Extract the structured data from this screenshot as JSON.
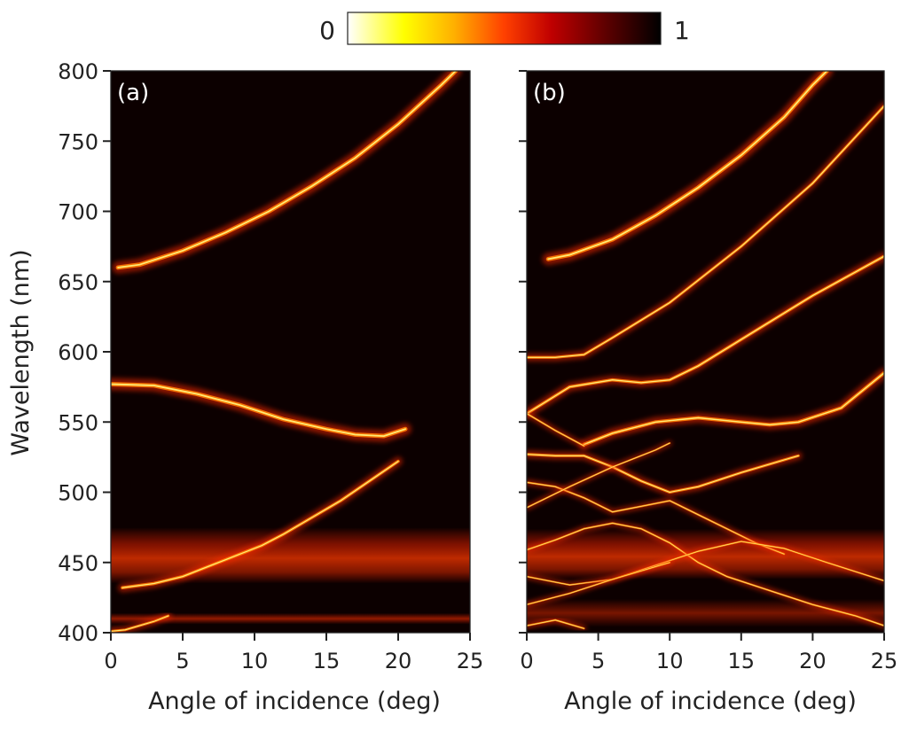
{
  "chart_data": {
    "type": "heatmap",
    "colorbar": {
      "min_label": "0",
      "max_label": "1",
      "colors": [
        "#ffffff",
        "#ffff00",
        "#ffb000",
        "#ff4000",
        "#c00000",
        "#600000",
        "#000000"
      ]
    },
    "ylabel": "Wavelength (nm)",
    "ylim": [
      400,
      800
    ],
    "yticks": [
      "400",
      "450",
      "500",
      "550",
      "600",
      "650",
      "700",
      "750",
      "800"
    ],
    "xlim": [
      0,
      25
    ],
    "xticks": [
      "0",
      "5",
      "10",
      "15",
      "20",
      "25"
    ],
    "panels": [
      {
        "label": "(a)",
        "xlabel": "Angle of incidence (deg)",
        "bands": [
          {
            "wl_center": 455,
            "wl_width": 20,
            "strength": 0.55
          },
          {
            "wl_center": 410,
            "wl_width": 4,
            "strength": 0.5
          }
        ],
        "modes": [
          {
            "points": [
              [
                0.5,
                660
              ],
              [
                2,
                662
              ],
              [
                5,
                672
              ],
              [
                8,
                685
              ],
              [
                11,
                700
              ],
              [
                14,
                718
              ],
              [
                17,
                738
              ],
              [
                20,
                762
              ],
              [
                23,
                790
              ],
              [
                24,
                800
              ]
            ],
            "width": 2.2
          },
          {
            "points": [
              [
                0,
                577
              ],
              [
                3,
                576
              ],
              [
                6,
                570
              ],
              [
                9,
                562
              ],
              [
                12,
                552
              ],
              [
                15,
                545
              ],
              [
                17,
                541
              ],
              [
                19,
                540
              ],
              [
                20.5,
                545
              ]
            ],
            "width": 2.2
          },
          {
            "points": [
              [
                0.8,
                432
              ],
              [
                3,
                435
              ],
              [
                5,
                440
              ],
              [
                7,
                448
              ],
              [
                9,
                456
              ],
              [
                10.5,
                462
              ],
              [
                12,
                470
              ],
              [
                14,
                482
              ],
              [
                16,
                494
              ],
              [
                18,
                508
              ],
              [
                20,
                522
              ]
            ],
            "width": 1.6
          },
          {
            "points": [
              [
                0,
                401
              ],
              [
                1,
                402
              ],
              [
                3,
                408
              ],
              [
                4,
                412
              ]
            ],
            "width": 1.3
          }
        ]
      },
      {
        "label": "(b)",
        "xlabel": "Angle of incidence (deg)",
        "bands": [
          {
            "wl_center": 456,
            "wl_width": 18,
            "strength": 0.55
          },
          {
            "wl_center": 414,
            "wl_width": 10,
            "strength": 0.4
          }
        ],
        "modes": [
          {
            "points": [
              [
                1.5,
                666
              ],
              [
                3,
                669
              ],
              [
                6,
                680
              ],
              [
                9,
                697
              ],
              [
                12,
                717
              ],
              [
                15,
                740
              ],
              [
                18,
                767
              ],
              [
                20,
                790
              ],
              [
                21,
                800
              ]
            ],
            "width": 2.2
          },
          {
            "points": [
              [
                0,
                596
              ],
              [
                2,
                596
              ],
              [
                4,
                598
              ],
              [
                6,
                610
              ],
              [
                10,
                635
              ],
              [
                15,
                675
              ],
              [
                20,
                720
              ],
              [
                25,
                775
              ]
            ],
            "width": 1.4
          },
          {
            "points": [
              [
                0,
                556
              ],
              [
                3,
                575
              ],
              [
                6,
                580
              ],
              [
                8,
                578
              ],
              [
                10,
                580
              ],
              [
                12,
                590
              ],
              [
                16,
                615
              ],
              [
                20,
                640
              ],
              [
                25,
                668
              ]
            ],
            "width": 1.6
          },
          {
            "points": [
              [
                4,
                534
              ],
              [
                6,
                542
              ],
              [
                9,
                550
              ],
              [
                12,
                553
              ],
              [
                15,
                550
              ],
              [
                17,
                548
              ],
              [
                19,
                550
              ],
              [
                22,
                560
              ],
              [
                25,
                585
              ]
            ],
            "width": 1.8
          },
          {
            "points": [
              [
                0,
                556
              ],
              [
                2,
                544
              ],
              [
                4,
                533
              ]
            ],
            "width": 1.0
          },
          {
            "points": [
              [
                0,
                527
              ],
              [
                2,
                526
              ],
              [
                4,
                526
              ],
              [
                6,
                518
              ],
              [
                8,
                508
              ],
              [
                10,
                500
              ],
              [
                12,
                504
              ],
              [
                15,
                514
              ],
              [
                18,
                523
              ],
              [
                19,
                526
              ]
            ],
            "width": 1.4
          },
          {
            "points": [
              [
                0,
                507
              ],
              [
                2,
                504
              ],
              [
                4,
                496
              ],
              [
                6,
                486
              ],
              [
                8,
                490
              ],
              [
                10,
                494
              ],
              [
                12,
                484
              ],
              [
                14,
                474
              ],
              [
                16,
                464
              ],
              [
                18,
                456
              ]
            ],
            "width": 1.0
          },
          {
            "points": [
              [
                0,
                489
              ],
              [
                3,
                504
              ],
              [
                6,
                518
              ],
              [
                9,
                530
              ],
              [
                10,
                535
              ]
            ],
            "width": 0.9
          },
          {
            "points": [
              [
                0,
                459
              ],
              [
                2,
                466
              ],
              [
                4,
                474
              ],
              [
                6,
                478
              ],
              [
                8,
                474
              ],
              [
                10,
                464
              ],
              [
                12,
                450
              ],
              [
                14,
                440
              ],
              [
                17,
                430
              ],
              [
                20,
                420
              ],
              [
                23,
                412
              ],
              [
                25,
                405
              ]
            ],
            "width": 1.0
          },
          {
            "points": [
              [
                0,
                440
              ],
              [
                3,
                434
              ],
              [
                6,
                438
              ],
              [
                9,
                448
              ],
              [
                12,
                458
              ],
              [
                15,
                465
              ],
              [
                18,
                460
              ],
              [
                21,
                450
              ],
              [
                25,
                437
              ]
            ],
            "width": 0.9
          },
          {
            "points": [
              [
                0,
                420
              ],
              [
                3,
                428
              ],
              [
                6,
                438
              ],
              [
                8,
                444
              ],
              [
                10,
                450
              ]
            ],
            "width": 0.9
          },
          {
            "points": [
              [
                0,
                405
              ],
              [
                2,
                409
              ],
              [
                4,
                403
              ]
            ],
            "width": 1.0
          }
        ]
      }
    ]
  }
}
